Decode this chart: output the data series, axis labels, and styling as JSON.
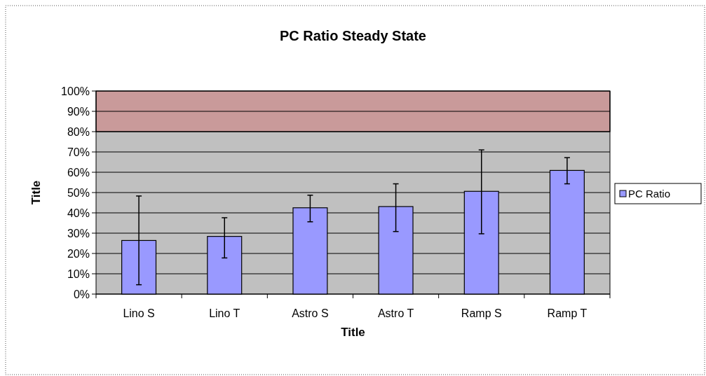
{
  "chart_data": {
    "type": "bar",
    "title": "PC Ratio Steady State",
    "xlabel": "Title",
    "ylabel": "Title",
    "categories": [
      "Lino S",
      "Lino T",
      "Astro S",
      "Astro T",
      "Ramp S",
      "Ramp T"
    ],
    "series": [
      {
        "name": "PC Ratio",
        "color": "#9999ff",
        "values": [
          26.4,
          28.4,
          42.5,
          43.1,
          50.6,
          60.9
        ],
        "errors": [
          [
            4.6,
            48.3
          ],
          [
            17.8,
            37.6
          ],
          [
            35.6,
            48.7
          ],
          [
            30.8,
            54.3
          ],
          [
            29.7,
            71
          ],
          [
            54.3,
            67.2
          ]
        ]
      }
    ],
    "ylim": [
      0,
      100
    ],
    "yticks": [
      {
        "value": 0,
        "label": "0%"
      },
      {
        "value": 10,
        "label": "10%"
      },
      {
        "value": 20,
        "label": "20%"
      },
      {
        "value": 30,
        "label": "30%"
      },
      {
        "value": 40,
        "label": "40%"
      },
      {
        "value": 50,
        "label": "50%"
      },
      {
        "value": 60,
        "label": "60%"
      },
      {
        "value": 70,
        "label": "70%"
      },
      {
        "value": 80,
        "label": "80%"
      },
      {
        "value": 90,
        "label": "90%"
      },
      {
        "value": 100,
        "label": "100%"
      }
    ],
    "bands": [
      {
        "axis": "y",
        "from": 80,
        "to": 100,
        "color": "#c99a9a"
      }
    ],
    "grid": "y",
    "legend": "right"
  }
}
